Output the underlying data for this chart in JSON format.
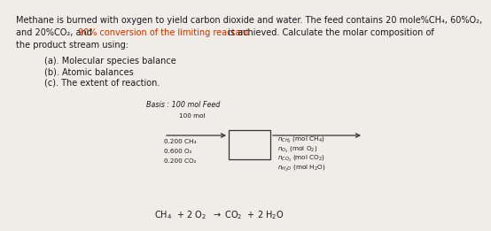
{
  "bg_color": "#f0ede8",
  "text_color": "#1a1a1a",
  "red_color": "#cc3300",
  "line1": "Methane is burned with oxygen to yield carbon dioxide and water. The feed contains 20 mole%CH₄, 60%O₂,",
  "line2_pre": "and 20%CO₂, and ",
  "line2_red": "90% conversion of the limiting reactant",
  "line2_post": " is achieved. Calculate the molar composition of",
  "line3": "the product stream using:",
  "items": [
    "(a). Molecular species balance",
    "(b). Atomic balances",
    "(c). The extent of reaction."
  ],
  "basis_label": "Basis : 100 mol Feed",
  "flow_label": "100 mol",
  "feed_lines": [
    "0.200 CH₄",
    "0.600 O₂",
    "0.200 CO₂"
  ],
  "fs_main": 7.0,
  "fs_small": 5.8,
  "fs_basis": 5.8,
  "fs_diagram": 5.2
}
